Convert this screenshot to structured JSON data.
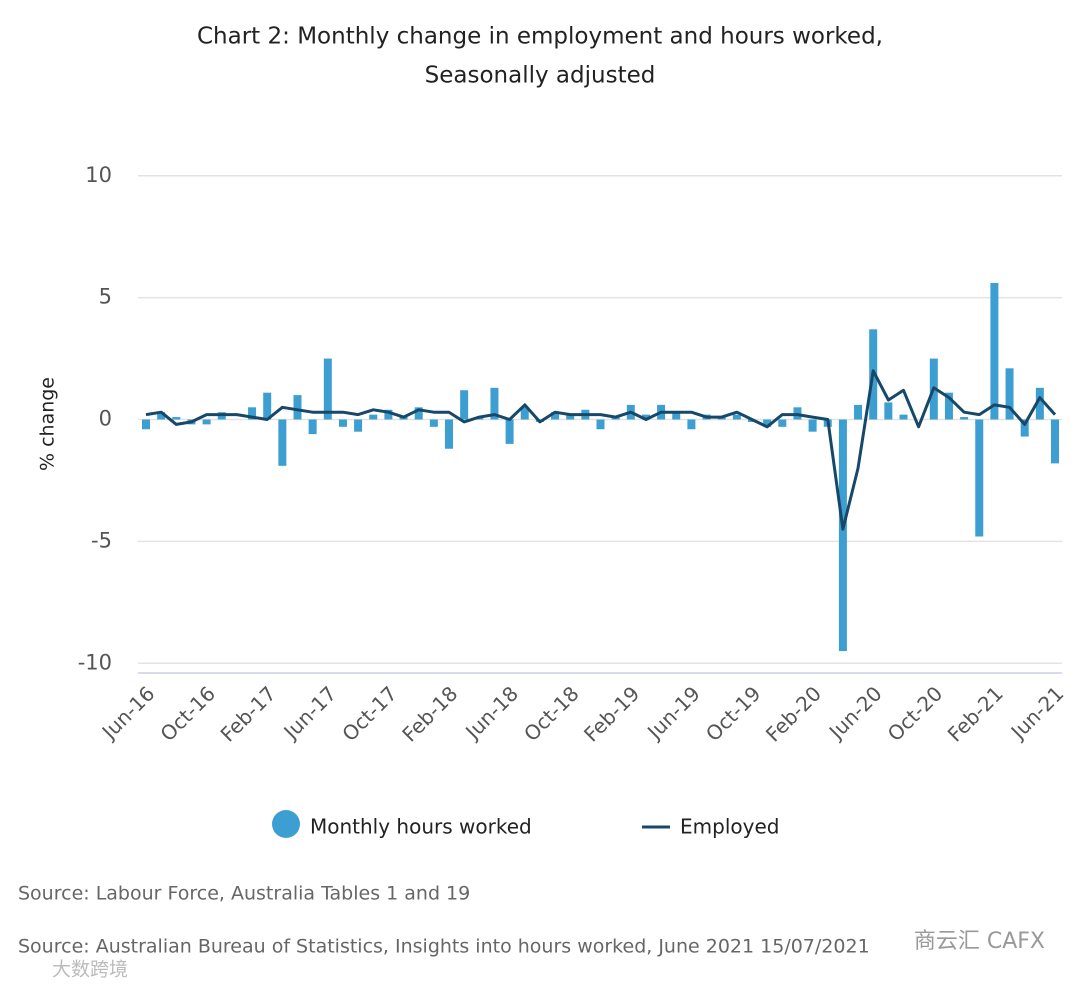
{
  "chart_data": {
    "type": "bar_line",
    "title": "Chart 2: Monthly change in employment and hours worked,",
    "subtitle": "Seasonally adjusted",
    "y_label": "% change",
    "categories": [
      "Jun-16",
      null,
      null,
      null,
      "Oct-16",
      null,
      null,
      null,
      "Feb-17",
      null,
      null,
      null,
      "Jun-17",
      null,
      null,
      null,
      "Oct-17",
      null,
      null,
      null,
      "Feb-18",
      null,
      null,
      null,
      "Jun-18",
      null,
      null,
      null,
      "Oct-18",
      null,
      null,
      null,
      "Feb-19",
      null,
      null,
      null,
      "Jun-19",
      null,
      null,
      null,
      "Oct-19",
      null,
      null,
      null,
      "Feb-20",
      null,
      null,
      null,
      "Jun-20",
      null,
      null,
      null,
      "Oct-20",
      null,
      null,
      null,
      "Feb-21",
      null,
      null,
      null,
      "Jun-21"
    ],
    "series": [
      {
        "name": "Monthly hours worked",
        "kind": "bar",
        "color": "#3d9fd1",
        "values": [
          -0.4,
          0.3,
          0.1,
          -0.2,
          -0.2,
          0.3,
          0.0,
          0.5,
          1.1,
          -1.9,
          1.0,
          -0.6,
          2.5,
          -0.3,
          -0.5,
          0.2,
          0.4,
          0.1,
          0.5,
          -0.3,
          -1.2,
          1.2,
          0.1,
          1.3,
          -1.0,
          0.5,
          -0.1,
          0.3,
          0.2,
          0.4,
          -0.4,
          0.1,
          0.6,
          0.2,
          0.6,
          0.3,
          -0.4,
          0.2,
          0.1,
          0.2,
          -0.1,
          -0.3,
          -0.3,
          0.5,
          -0.5,
          -0.3,
          -9.5,
          0.6,
          3.7,
          0.7,
          0.2,
          0.0,
          2.5,
          1.1,
          0.1,
          -4.8,
          5.6,
          2.1,
          -0.7,
          1.3,
          -1.8
        ]
      },
      {
        "name": "Employed",
        "kind": "line",
        "color": "#17486a",
        "values": [
          0.2,
          0.3,
          -0.2,
          -0.1,
          0.2,
          0.2,
          0.2,
          0.1,
          0.0,
          0.5,
          0.4,
          0.3,
          0.3,
          0.3,
          0.2,
          0.4,
          0.3,
          0.1,
          0.4,
          0.3,
          0.3,
          -0.1,
          0.1,
          0.2,
          0.0,
          0.6,
          -0.1,
          0.3,
          0.2,
          0.2,
          0.2,
          0.1,
          0.3,
          0.0,
          0.3,
          0.3,
          0.3,
          0.1,
          0.1,
          0.3,
          0.0,
          -0.3,
          0.2,
          0.2,
          0.1,
          0.0,
          -4.5,
          -2.0,
          2.0,
          0.8,
          1.2,
          -0.3,
          1.3,
          0.9,
          0.3,
          0.2,
          0.6,
          0.5,
          -0.2,
          0.9,
          0.2
        ]
      }
    ],
    "ylim": [
      -10.4,
      10.4
    ],
    "yticks": [
      10,
      5,
      0,
      -5,
      -10
    ],
    "grid": true,
    "notes": [
      "Source: Labour Force, Australia Tables 1 and 19",
      "Source: Australian Bureau of Statistics, Insights into hours worked, June 2021 15/07/2021"
    ],
    "watermarks": [
      "商云汇 CAFX",
      "大数跨境"
    ]
  }
}
